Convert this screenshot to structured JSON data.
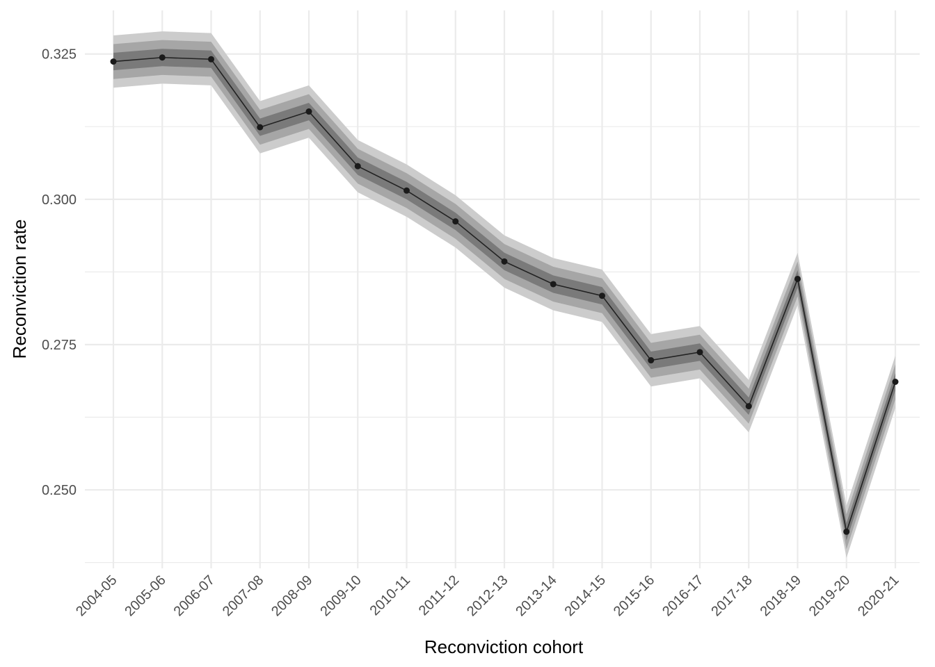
{
  "chart_data": {
    "type": "line",
    "xlabel": "Reconviction cohort",
    "ylabel": "Reconviction rate",
    "categories": [
      "2004-05",
      "2005-06",
      "2006-07",
      "2007-08",
      "2008-09",
      "2009-10",
      "2010-11",
      "2011-12",
      "2012-13",
      "2013-14",
      "2014-15",
      "2015-16",
      "2016-17",
      "2017-18",
      "2018-19",
      "2019-20",
      "2020-21"
    ],
    "series": [
      {
        "values": [
          0.3237,
          0.3244,
          0.3241,
          0.3124,
          0.3151,
          0.3057,
          0.3015,
          0.2962,
          0.2893,
          0.2854,
          0.2834,
          0.2723,
          0.2737,
          0.2644,
          0.2863,
          0.2428,
          0.2686
        ]
      }
    ],
    "bands": [
      {
        "level": "outer",
        "half_width": 0.0045,
        "color": "#cccccc"
      },
      {
        "level": "middle",
        "half_width": 0.003,
        "color": "#a6a6a6"
      },
      {
        "level": "inner",
        "half_width": 0.0015,
        "color": "#7a7a7a"
      }
    ],
    "ylim": [
      0.2365,
      0.3325
    ],
    "yticks": [
      0.25,
      0.275,
      0.3,
      0.325
    ],
    "ytick_labels": [
      "0.250",
      "0.275",
      "0.300",
      "0.325"
    ],
    "grid": true,
    "legend": "none",
    "colors": {
      "line": "#222222",
      "point": "#1a1a1a",
      "grid": "#ebebeb"
    }
  }
}
